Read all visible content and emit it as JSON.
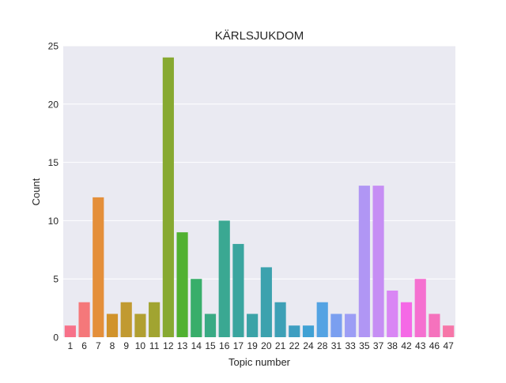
{
  "chart_data": {
    "type": "bar",
    "title": "KÄRLSJUKDOM",
    "xlabel": "Topic number",
    "ylabel": "Count",
    "ylim": [
      0,
      25
    ],
    "yticks": [
      0,
      5,
      10,
      15,
      20,
      25
    ],
    "grid": true,
    "legend": "none",
    "background": "#eaeaf2",
    "categories": [
      "1",
      "6",
      "7",
      "8",
      "9",
      "10",
      "11",
      "12",
      "13",
      "14",
      "15",
      "16",
      "17",
      "19",
      "20",
      "21",
      "22",
      "24",
      "28",
      "31",
      "33",
      "35",
      "37",
      "38",
      "42",
      "43",
      "46",
      "47"
    ],
    "values": [
      1,
      3,
      12,
      2,
      3,
      2,
      3,
      24,
      9,
      5,
      2,
      10,
      8,
      2,
      6,
      3,
      1,
      1,
      3,
      2,
      2,
      13,
      13,
      4,
      3,
      5,
      2,
      1
    ],
    "colors": [
      "#f77189",
      "#f5787a",
      "#e48f3a",
      "#d1932b",
      "#c19a31",
      "#b19f31",
      "#a1a431",
      "#87a931",
      "#51b131",
      "#38ae6a",
      "#39aa84",
      "#3aa892",
      "#3aa59f",
      "#3ba3a7",
      "#3ca2ae",
      "#3da0b6",
      "#3e9ec1",
      "#40a1d4",
      "#54a3e3",
      "#7a9ff0",
      "#9c9df5",
      "#b096f4",
      "#c68ef4",
      "#d986f4",
      "#f569e6",
      "#f570d0",
      "#f572bd",
      "#f676a8"
    ]
  }
}
